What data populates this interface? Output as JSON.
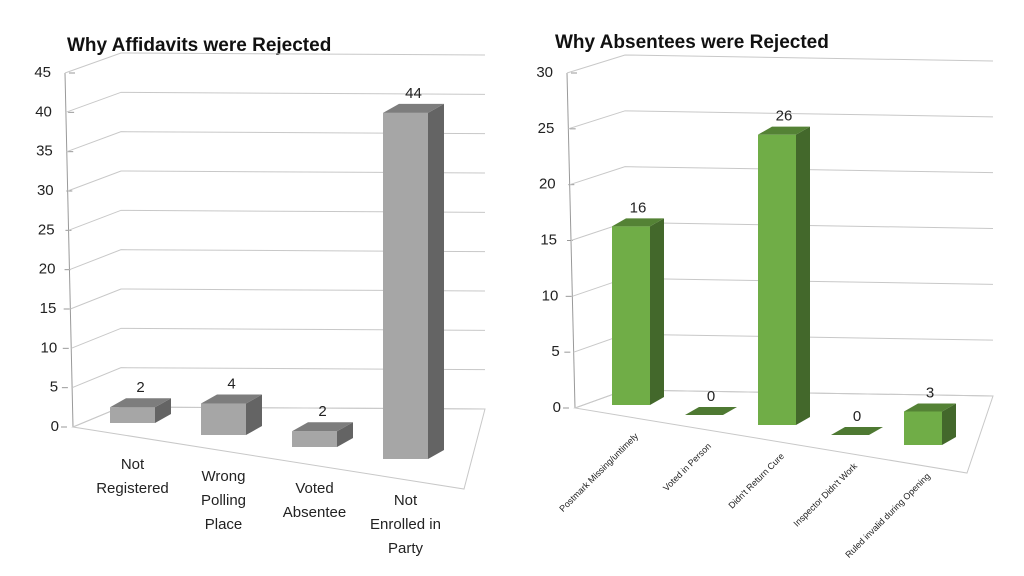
{
  "chart_data": [
    {
      "type": "bar3d",
      "title": "Why Affidavits were Rejected",
      "categories": [
        "Not Registered",
        "Wrong Polling Place",
        "Voted Absentee",
        "Not Enrolled in Party"
      ],
      "values": [
        2,
        4,
        2,
        44
      ],
      "color": "#a6a6a6",
      "ylim": [
        0,
        45
      ],
      "yticks": [
        0,
        5,
        10,
        15,
        20,
        25,
        30,
        35,
        40,
        45
      ],
      "grid": true
    },
    {
      "type": "bar3d",
      "title": "Why Absentees were Rejected",
      "categories": [
        "Postmark Missing/untimely",
        "Voted in Person",
        "Didn't Return Cure",
        "Inspector Didn't Work",
        "Ruled invalid during Opening"
      ],
      "values": [
        16,
        0,
        26,
        0,
        3
      ],
      "color": "#70ad47",
      "ylim": [
        0,
        30
      ],
      "yticks": [
        0,
        5,
        10,
        15,
        20,
        25,
        30
      ],
      "grid": true
    }
  ]
}
